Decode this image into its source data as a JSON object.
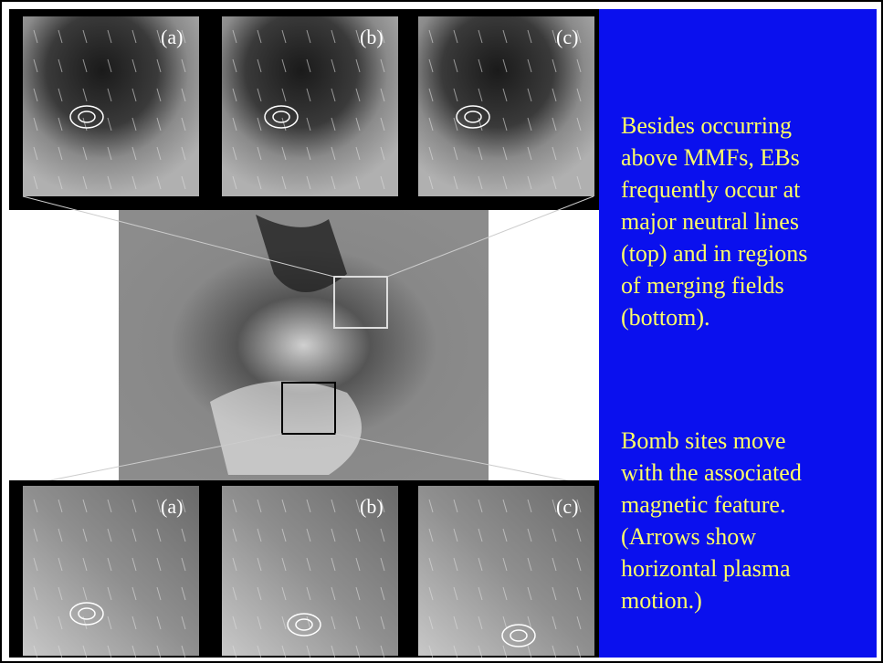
{
  "top_panels": [
    {
      "label": "(a)"
    },
    {
      "label": "(b)"
    },
    {
      "label": "(c)"
    }
  ],
  "bottom_panels": [
    {
      "label": "(a)"
    },
    {
      "label": "(b)"
    },
    {
      "label": "(c)"
    }
  ],
  "text_panel": {
    "paragraph_1": [
      "Besides occurring",
      "above MMFs, EBs",
      "frequently occur at",
      "major neutral lines",
      "(top) and in regions",
      "of merging fields",
      "(bottom)."
    ],
    "paragraph_2": [
      "Bomb sites move",
      "with the associated",
      "magnetic feature.",
      "(Arrows show",
      "horizontal plasma",
      "motion.)"
    ]
  }
}
